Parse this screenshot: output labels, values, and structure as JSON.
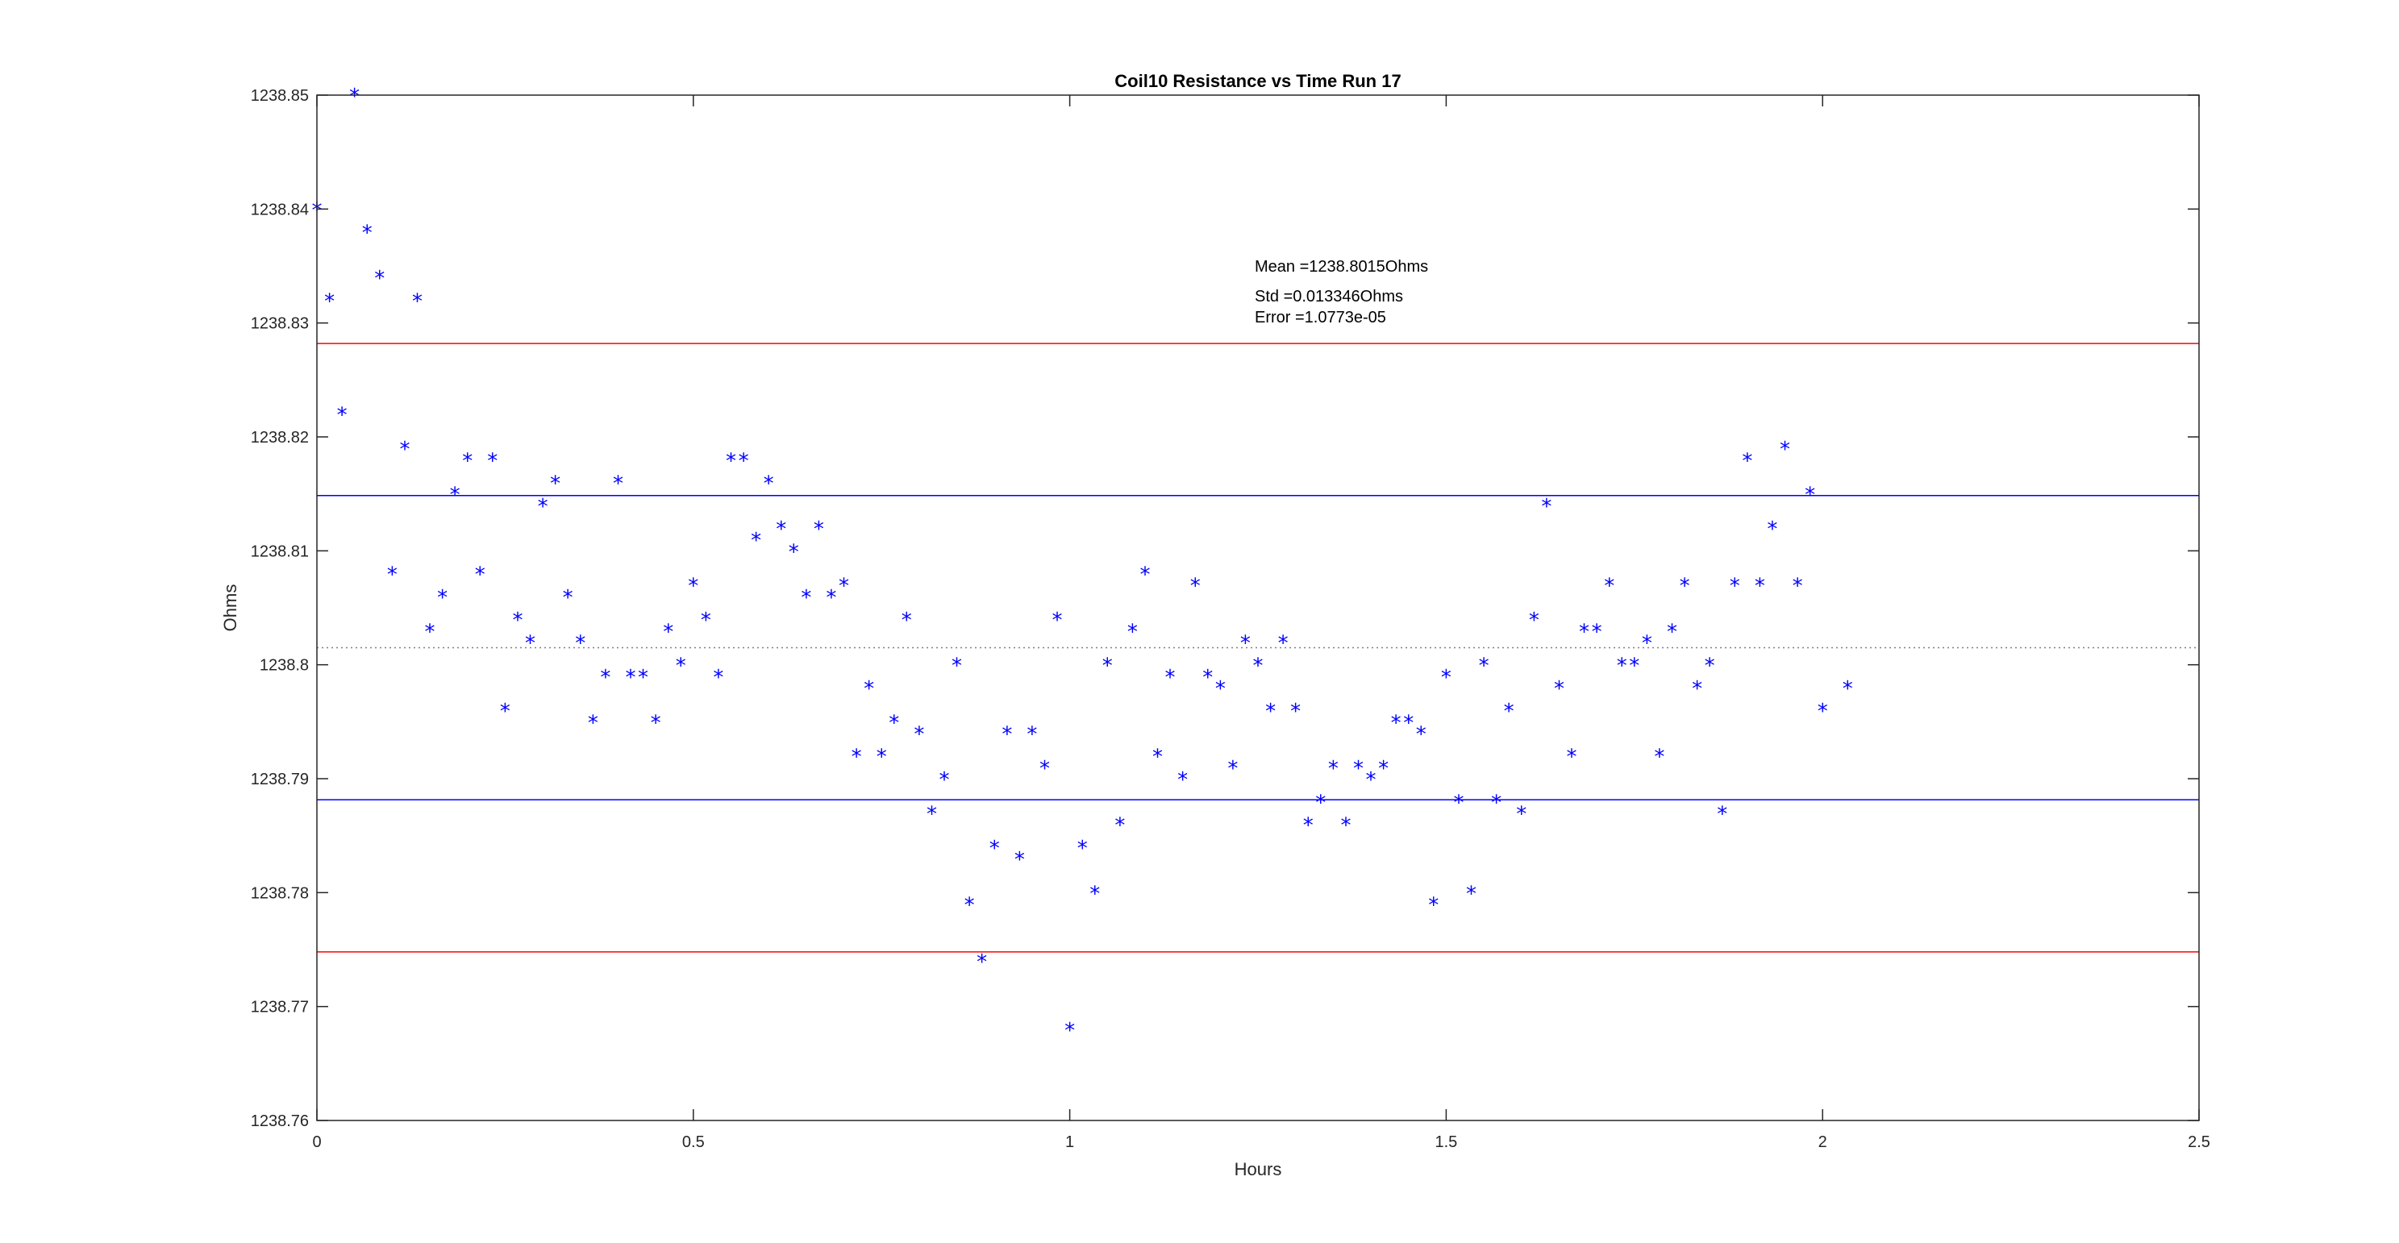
{
  "chart_data": {
    "type": "scatter",
    "title": "Coil10 Resistance vs Time Run 17",
    "xlabel": "Hours",
    "ylabel": "Ohms",
    "xlim": [
      0,
      2.5
    ],
    "ylim": [
      1238.76,
      1238.85
    ],
    "x_ticks": [
      "0",
      "0.5",
      "1",
      "1.5",
      "2",
      "2.5"
    ],
    "x_tick_values": [
      0,
      0.5,
      1,
      1.5,
      2,
      2.5
    ],
    "y_ticks": [
      "1238.76",
      "1238.77",
      "1238.78",
      "1238.79",
      "1238.8",
      "1238.81",
      "1238.82",
      "1238.83",
      "1238.84",
      "1238.85"
    ],
    "y_tick_values": [
      1238.76,
      1238.77,
      1238.78,
      1238.79,
      1238.8,
      1238.81,
      1238.82,
      1238.83,
      1238.84,
      1238.85
    ],
    "grid": false,
    "marker": "*",
    "point_color": "#0000ff",
    "points": [
      [
        0.0,
        1238.84
      ],
      [
        0.0167,
        1238.832
      ],
      [
        0.0333,
        1238.822
      ],
      [
        0.05,
        1238.85
      ],
      [
        0.0667,
        1238.838
      ],
      [
        0.0833,
        1238.834
      ],
      [
        0.1,
        1238.808
      ],
      [
        0.1167,
        1238.819
      ],
      [
        0.1333,
        1238.832
      ],
      [
        0.15,
        1238.803
      ],
      [
        0.1667,
        1238.806
      ],
      [
        0.1833,
        1238.815
      ],
      [
        0.2,
        1238.818
      ],
      [
        0.2167,
        1238.808
      ],
      [
        0.2333,
        1238.818
      ],
      [
        0.25,
        1238.796
      ],
      [
        0.2667,
        1238.804
      ],
      [
        0.2833,
        1238.802
      ],
      [
        0.3,
        1238.814
      ],
      [
        0.3167,
        1238.816
      ],
      [
        0.3333,
        1238.806
      ],
      [
        0.35,
        1238.802
      ],
      [
        0.3667,
        1238.795
      ],
      [
        0.3833,
        1238.799
      ],
      [
        0.4,
        1238.816
      ],
      [
        0.4167,
        1238.799
      ],
      [
        0.4333,
        1238.799
      ],
      [
        0.45,
        1238.795
      ],
      [
        0.4667,
        1238.803
      ],
      [
        0.4833,
        1238.8
      ],
      [
        0.5,
        1238.807
      ],
      [
        0.5167,
        1238.804
      ],
      [
        0.5333,
        1238.799
      ],
      [
        0.55,
        1238.818
      ],
      [
        0.5667,
        1238.818
      ],
      [
        0.5833,
        1238.811
      ],
      [
        0.6,
        1238.816
      ],
      [
        0.6167,
        1238.812
      ],
      [
        0.6333,
        1238.81
      ],
      [
        0.65,
        1238.806
      ],
      [
        0.6667,
        1238.812
      ],
      [
        0.6833,
        1238.806
      ],
      [
        0.7,
        1238.807
      ],
      [
        0.7167,
        1238.792
      ],
      [
        0.7333,
        1238.798
      ],
      [
        0.75,
        1238.792
      ],
      [
        0.7667,
        1238.795
      ],
      [
        0.7833,
        1238.804
      ],
      [
        0.8,
        1238.794
      ],
      [
        0.8167,
        1238.787
      ],
      [
        0.8333,
        1238.79
      ],
      [
        0.85,
        1238.8
      ],
      [
        0.8667,
        1238.779
      ],
      [
        0.8833,
        1238.774
      ],
      [
        0.9,
        1238.784
      ],
      [
        0.9167,
        1238.794
      ],
      [
        0.9333,
        1238.783
      ],
      [
        0.95,
        1238.794
      ],
      [
        0.9667,
        1238.791
      ],
      [
        0.9833,
        1238.804
      ],
      [
        1.0,
        1238.768
      ],
      [
        1.0167,
        1238.784
      ],
      [
        1.0333,
        1238.78
      ],
      [
        1.05,
        1238.8
      ],
      [
        1.0667,
        1238.786
      ],
      [
        1.0833,
        1238.803
      ],
      [
        1.1,
        1238.808
      ],
      [
        1.1167,
        1238.792
      ],
      [
        1.1333,
        1238.799
      ],
      [
        1.15,
        1238.79
      ],
      [
        1.1667,
        1238.807
      ],
      [
        1.1833,
        1238.799
      ],
      [
        1.2,
        1238.798
      ],
      [
        1.2167,
        1238.791
      ],
      [
        1.2333,
        1238.802
      ],
      [
        1.25,
        1238.8
      ],
      [
        1.2667,
        1238.796
      ],
      [
        1.2833,
        1238.802
      ],
      [
        1.3,
        1238.796
      ],
      [
        1.3167,
        1238.786
      ],
      [
        1.3333,
        1238.788
      ],
      [
        1.35,
        1238.791
      ],
      [
        1.3667,
        1238.786
      ],
      [
        1.3833,
        1238.791
      ],
      [
        1.4,
        1238.79
      ],
      [
        1.4167,
        1238.791
      ],
      [
        1.4333,
        1238.795
      ],
      [
        1.45,
        1238.795
      ],
      [
        1.4667,
        1238.794
      ],
      [
        1.4833,
        1238.779
      ],
      [
        1.5,
        1238.799
      ],
      [
        1.5167,
        1238.788
      ],
      [
        1.5333,
        1238.78
      ],
      [
        1.55,
        1238.8
      ],
      [
        1.5667,
        1238.788
      ],
      [
        1.5833,
        1238.796
      ],
      [
        1.6,
        1238.787
      ],
      [
        1.6167,
        1238.804
      ],
      [
        1.6333,
        1238.814
      ],
      [
        1.65,
        1238.798
      ],
      [
        1.6667,
        1238.792
      ],
      [
        1.6833,
        1238.803
      ],
      [
        1.7,
        1238.803
      ],
      [
        1.7167,
        1238.807
      ],
      [
        1.7333,
        1238.8
      ],
      [
        1.75,
        1238.8
      ],
      [
        1.7667,
        1238.802
      ],
      [
        1.7833,
        1238.792
      ],
      [
        1.8,
        1238.803
      ],
      [
        1.8167,
        1238.807
      ],
      [
        1.8333,
        1238.798
      ],
      [
        1.85,
        1238.8
      ],
      [
        1.8667,
        1238.787
      ],
      [
        1.8833,
        1238.807
      ],
      [
        1.9,
        1238.818
      ],
      [
        1.9167,
        1238.807
      ],
      [
        1.9333,
        1238.812
      ],
      [
        1.95,
        1238.819
      ],
      [
        1.9667,
        1238.807
      ],
      [
        1.9833,
        1238.815
      ],
      [
        2.0,
        1238.796
      ],
      [
        2.0333,
        1238.798
      ]
    ],
    "reference_lines": [
      {
        "y": 1238.8015,
        "color": "#808080",
        "style": "dotted"
      },
      {
        "y": 1238.81485,
        "color": "#0000ff",
        "style": "solid"
      },
      {
        "y": 1238.78815,
        "color": "#0000ff",
        "style": "solid"
      },
      {
        "y": 1238.8282,
        "color": "#ff0000",
        "style": "solid"
      },
      {
        "y": 1238.7748,
        "color": "#ff0000",
        "style": "solid"
      }
    ],
    "annotations": [
      "Mean =1238.8015Ohms",
      "Std =0.013346Ohms",
      "Error =1.0773e-05"
    ]
  }
}
